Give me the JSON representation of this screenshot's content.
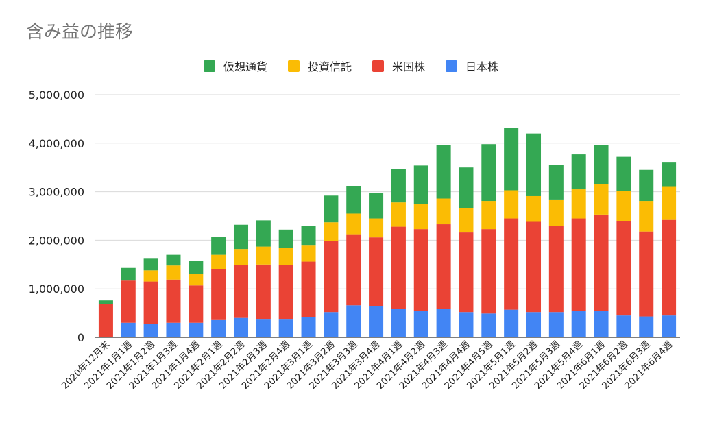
{
  "chart_data": {
    "type": "bar",
    "stacked": true,
    "title": "含み益の推移",
    "legend_position": "top",
    "grid": true,
    "ylim": [
      0,
      5000000
    ],
    "yticks": [
      0,
      1000000,
      2000000,
      3000000,
      4000000,
      5000000
    ],
    "ytick_labels": [
      "0",
      "1,000,000",
      "2,000,000",
      "3,000,000",
      "4,000,000",
      "5,000,000"
    ],
    "categories": [
      "2020年12月末",
      "2021年1月1週",
      "2021年1月2週",
      "2021年1月3週",
      "2021年1月4週",
      "2021年2月1週",
      "2021年2月2週",
      "2021年2月3週",
      "2021年2月4週",
      "2021年3月1週",
      "2021年3月2週",
      "2021年3月3週",
      "2021年3月4週",
      "2021年4月1週",
      "2021年4月2週",
      "2021年4月3週",
      "2021年4月4週",
      "2021年4月5週",
      "2021年5月1週",
      "2021年5月2週",
      "2021年5月3週",
      "2021年5月4週",
      "2021年6月1週",
      "2021年6月2週",
      "2021年6月3週",
      "2021年6月4週"
    ],
    "series": [
      {
        "name": "日本株",
        "color": "#4285f4",
        "values": [
          0,
          300000,
          280000,
          300000,
          300000,
          370000,
          400000,
          380000,
          380000,
          420000,
          520000,
          660000,
          640000,
          590000,
          540000,
          590000,
          520000,
          490000,
          570000,
          520000,
          520000,
          540000,
          540000,
          450000,
          430000,
          450000
        ]
      },
      {
        "name": "米国株",
        "color": "#ea4335",
        "values": [
          690000,
          870000,
          870000,
          890000,
          770000,
          1040000,
          1090000,
          1120000,
          1110000,
          1140000,
          1470000,
          1450000,
          1420000,
          1690000,
          1690000,
          1740000,
          1640000,
          1740000,
          1880000,
          1860000,
          1780000,
          1910000,
          1990000,
          1950000,
          1750000,
          1970000
        ]
      },
      {
        "name": "投資信託",
        "color": "#fbbc04",
        "values": [
          0,
          0,
          230000,
          290000,
          240000,
          290000,
          330000,
          370000,
          360000,
          330000,
          380000,
          440000,
          390000,
          500000,
          510000,
          530000,
          500000,
          580000,
          580000,
          530000,
          540000,
          600000,
          620000,
          620000,
          630000,
          680000
        ]
      },
      {
        "name": "仮想通貨",
        "color": "#34a853",
        "values": [
          70000,
          260000,
          240000,
          220000,
          270000,
          370000,
          500000,
          540000,
          370000,
          400000,
          550000,
          560000,
          520000,
          690000,
          800000,
          1100000,
          840000,
          1170000,
          1290000,
          1290000,
          710000,
          720000,
          810000,
          700000,
          640000,
          500000
        ]
      }
    ]
  }
}
